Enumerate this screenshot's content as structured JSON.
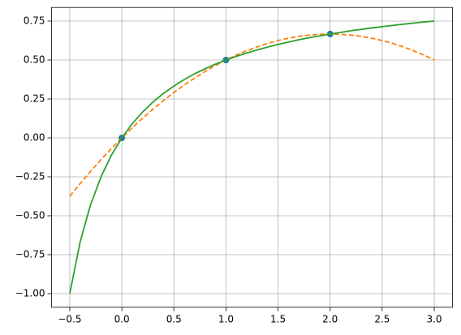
{
  "chart_data": {
    "type": "line",
    "xlim": [
      -0.675,
      3.175
    ],
    "ylim": [
      -1.0875,
      0.8375
    ],
    "grid": true,
    "xticks": [
      {
        "value": -0.5,
        "label": "−0.5"
      },
      {
        "value": 0,
        "label": "0.0"
      },
      0.5,
      {
        "value": 1,
        "label": "1.0"
      },
      1.5,
      {
        "value": 2,
        "label": "2.0"
      },
      2.5,
      {
        "value": 3,
        "label": "3.0"
      }
    ],
    "yticks": [
      {
        "value": -1,
        "label": "−1.00"
      },
      {
        "value": -0.75,
        "label": "−0.75"
      },
      {
        "value": -0.5,
        "label": "−0.50"
      },
      {
        "value": -0.25,
        "label": "−0.25"
      },
      {
        "value": 0,
        "label": "0.00"
      },
      0.25,
      {
        "value": 0.5,
        "label": "0.50"
      },
      0.75
    ],
    "series": [
      {
        "color": "#1f77b4",
        "style": "markers",
        "x": [
          0,
          1,
          2
        ],
        "values": [
          0,
          0.5,
          0.667
        ]
      },
      {
        "color": "#ff7f0e",
        "style": "dashed",
        "x": [
          -0.5,
          -0.4,
          -0.3,
          -0.2,
          -0.1,
          0,
          0.1,
          0.2,
          0.3,
          0.4,
          0.5,
          0.6,
          0.7,
          0.8,
          0.9,
          1,
          1.1,
          1.2,
          1.3,
          1.4,
          1.5,
          1.6,
          1.7,
          1.8,
          1.9,
          2,
          2.1,
          2.2,
          2.3,
          2.4,
          2.5,
          2.6,
          2.7,
          2.8,
          2.9,
          3
        ],
        "values": [
          -0.375,
          -0.293,
          -0.215,
          -0.14,
          -0.068,
          0,
          0.065,
          0.127,
          0.185,
          0.24,
          0.292,
          0.34,
          0.385,
          0.427,
          0.465,
          0.5,
          0.532,
          0.56,
          0.585,
          0.607,
          0.625,
          0.64,
          0.652,
          0.66,
          0.665,
          0.667,
          0.665,
          0.66,
          0.652,
          0.64,
          0.625,
          0.607,
          0.585,
          0.56,
          0.532,
          0.5
        ]
      },
      {
        "color": "#2ca02c",
        "style": "solid",
        "x": [
          -0.5,
          -0.4,
          -0.3,
          -0.2,
          -0.1,
          0,
          0.1,
          0.2,
          0.3,
          0.4,
          0.5,
          0.6,
          0.7,
          0.8,
          0.9,
          1,
          1.1,
          1.2,
          1.3,
          1.4,
          1.5,
          1.6,
          1.7,
          1.8,
          1.9,
          2,
          2.1,
          2.2,
          2.3,
          2.4,
          2.5,
          2.6,
          2.7,
          2.8,
          2.9,
          3
        ],
        "values": [
          -1,
          -0.667,
          -0.429,
          -0.25,
          -0.111,
          0,
          0.091,
          0.167,
          0.231,
          0.286,
          0.333,
          0.375,
          0.412,
          0.444,
          0.474,
          0.5,
          0.524,
          0.545,
          0.565,
          0.583,
          0.6,
          0.615,
          0.63,
          0.643,
          0.655,
          0.667,
          0.677,
          0.688,
          0.697,
          0.706,
          0.714,
          0.722,
          0.73,
          0.737,
          0.744,
          0.75
        ]
      }
    ]
  }
}
